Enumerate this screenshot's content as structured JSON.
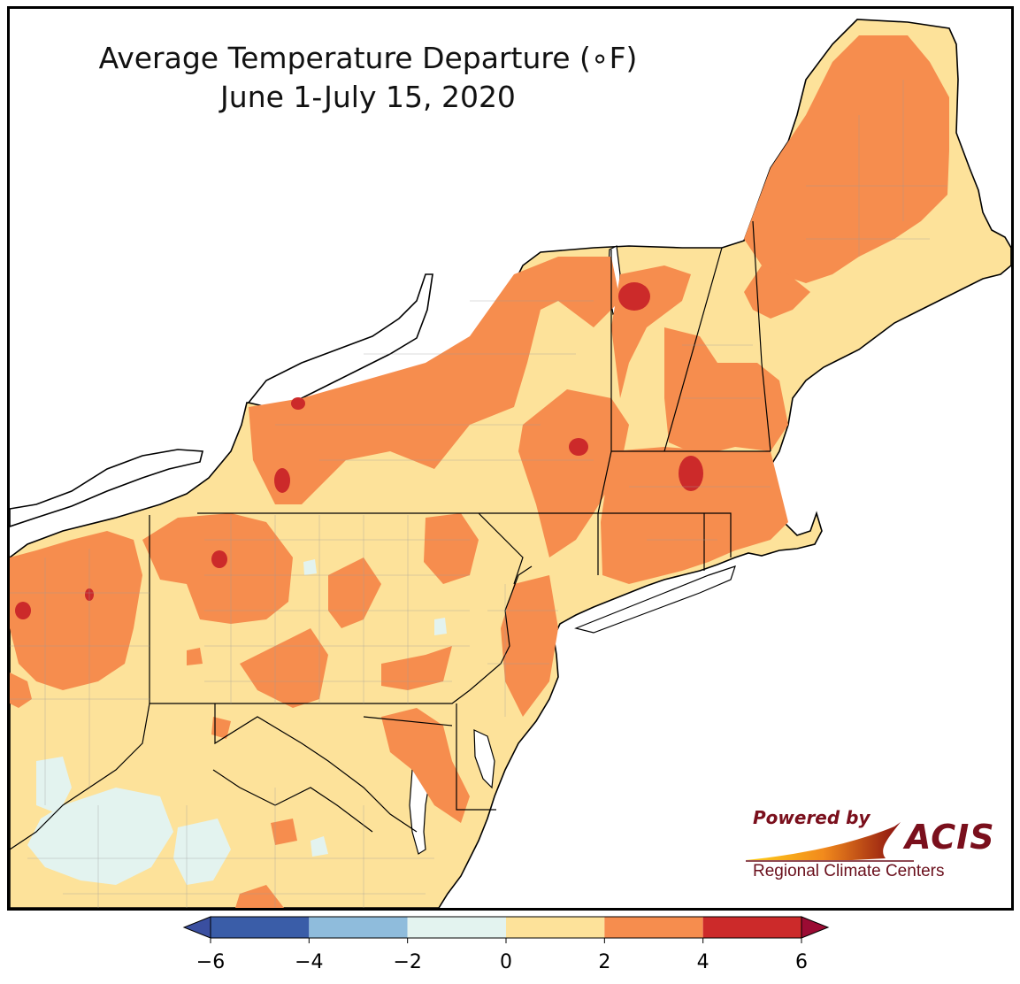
{
  "title": {
    "line1": "Average Temperature Departure (∘F)",
    "line2": "June 1-July 15, 2020"
  },
  "legend": {
    "ticks": [
      "−6",
      "−4",
      "−2",
      "0",
      "2",
      "4",
      "6"
    ],
    "bins": [
      {
        "from": -6,
        "to": -4,
        "color": "#3a5da8"
      },
      {
        "from": -4,
        "to": -2,
        "color": "#8fbcdc"
      },
      {
        "from": -2,
        "to": 0,
        "color": "#e3f3ef"
      },
      {
        "from": 0,
        "to": 2,
        "color": "#fde29a"
      },
      {
        "from": 2,
        "to": 4,
        "color": "#f68d4e"
      },
      {
        "from": 4,
        "to": 6,
        "color": "#cc2a2a"
      }
    ],
    "under_color": "#3a4fa0",
    "over_color": "#9b0b33"
  },
  "logo": {
    "powered_by": "Powered by",
    "brand": "ACIS",
    "org": "Regional Climate Centers"
  },
  "colors": {
    "ocean": "#ffffff",
    "land_base": "#fde29a",
    "warm": "#f68d4e",
    "hot": "#cc2a2a",
    "cool": "#e3f3ef",
    "state_line": "#000000",
    "county_line": "#9a9a9a"
  }
}
